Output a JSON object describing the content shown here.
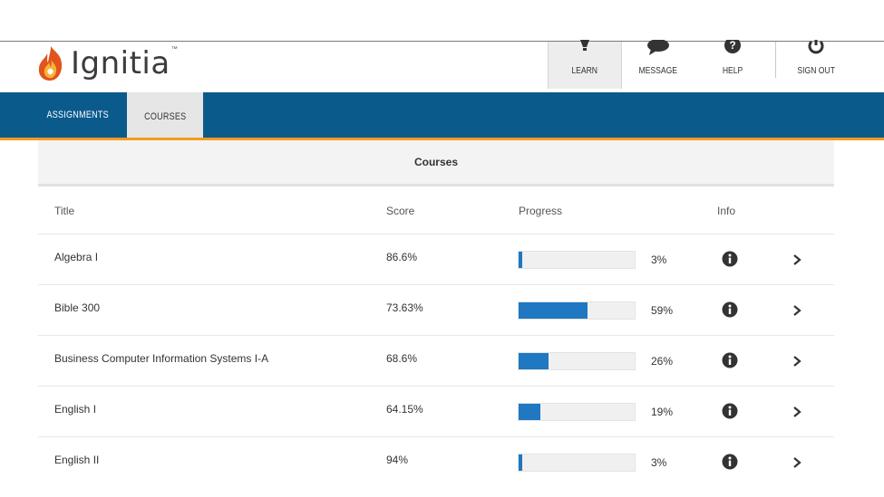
{
  "header": {
    "logo_text": "Ignitia",
    "logo_tm": "™",
    "nav": [
      {
        "label": "LEARN",
        "icon": "lightbulb-icon"
      },
      {
        "label": "MESSAGE",
        "icon": "chat-bubble-icon"
      },
      {
        "label": "HELP",
        "icon": "question-circle-icon"
      },
      {
        "label": "SIGN OUT",
        "icon": "power-icon"
      }
    ]
  },
  "tabs": [
    {
      "label": "ASSIGNMENTS",
      "active": false
    },
    {
      "label": "COURSES",
      "active": true
    }
  ],
  "panel": {
    "title": "Courses"
  },
  "table": {
    "columns": [
      "Title",
      "Score",
      "Progress",
      "Info"
    ],
    "rows": [
      {
        "title": "Algebra I",
        "score": "86.6%",
        "progress": 3,
        "progress_label": "3%"
      },
      {
        "title": "Bible 300",
        "score": "73.63%",
        "progress": 59,
        "progress_label": "59%"
      },
      {
        "title": "Business Computer Information Systems I-A",
        "score": "68.6%",
        "progress": 26,
        "progress_label": "26%"
      },
      {
        "title": "English I",
        "score": "64.15%",
        "progress": 19,
        "progress_label": "19%"
      },
      {
        "title": "English II",
        "score": "94%",
        "progress": 3,
        "progress_label": "3%"
      }
    ]
  },
  "colors": {
    "brand_blue": "#0b5a8c",
    "accent_orange": "#f29b1d",
    "progress_blue": "#1f78c1"
  }
}
